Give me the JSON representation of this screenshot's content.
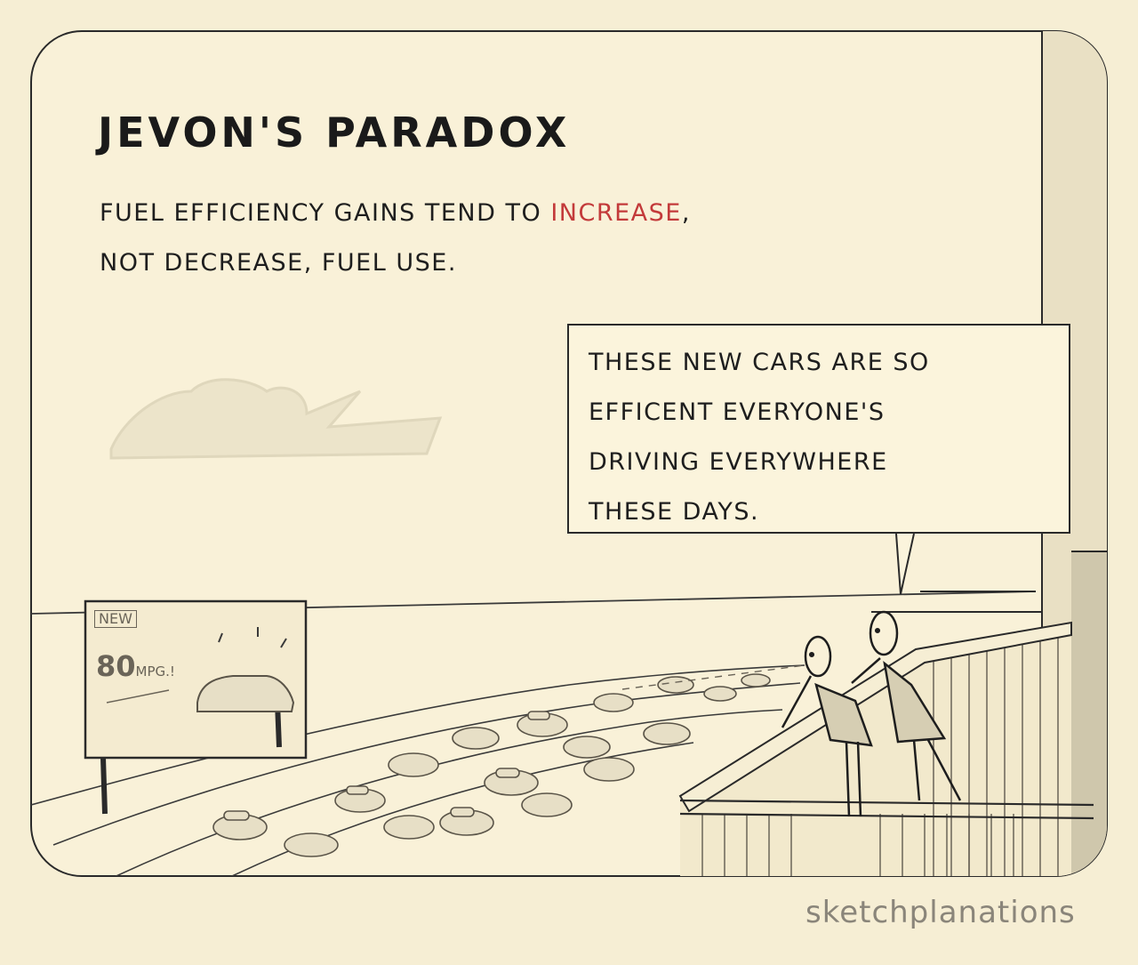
{
  "comic": {
    "title": "JEVON'S PARADOX",
    "subtitle": {
      "line1_before": "FUEL EFFICIENCY GAINS TEND TO ",
      "line1_emphasis": "INCREASE",
      "line1_after": ",",
      "line2": "NOT DECREASE, FUEL USE."
    },
    "speech_bubble": {
      "lines": [
        "THESE NEW CARS ARE SO",
        "EFFICENT EVERYONE'S",
        "DRIVING EVERYWHERE",
        "THESE DAYS."
      ]
    },
    "billboard": {
      "tag": "NEW",
      "mpg_value": "80",
      "mpg_unit": "MPG.!"
    },
    "signature": "sketchplanations"
  },
  "colors": {
    "background": "#f6eed4",
    "panel": "#f9f1d8",
    "ink": "#1e1e1e",
    "accent": "#c33a3a",
    "grey_ink": "#6a6458",
    "car_fill": "#e7dfc6",
    "shadow": "#d6ceb3"
  },
  "icons": [
    "car-icon",
    "person-icon",
    "cloud-icon",
    "billboard-icon"
  ]
}
